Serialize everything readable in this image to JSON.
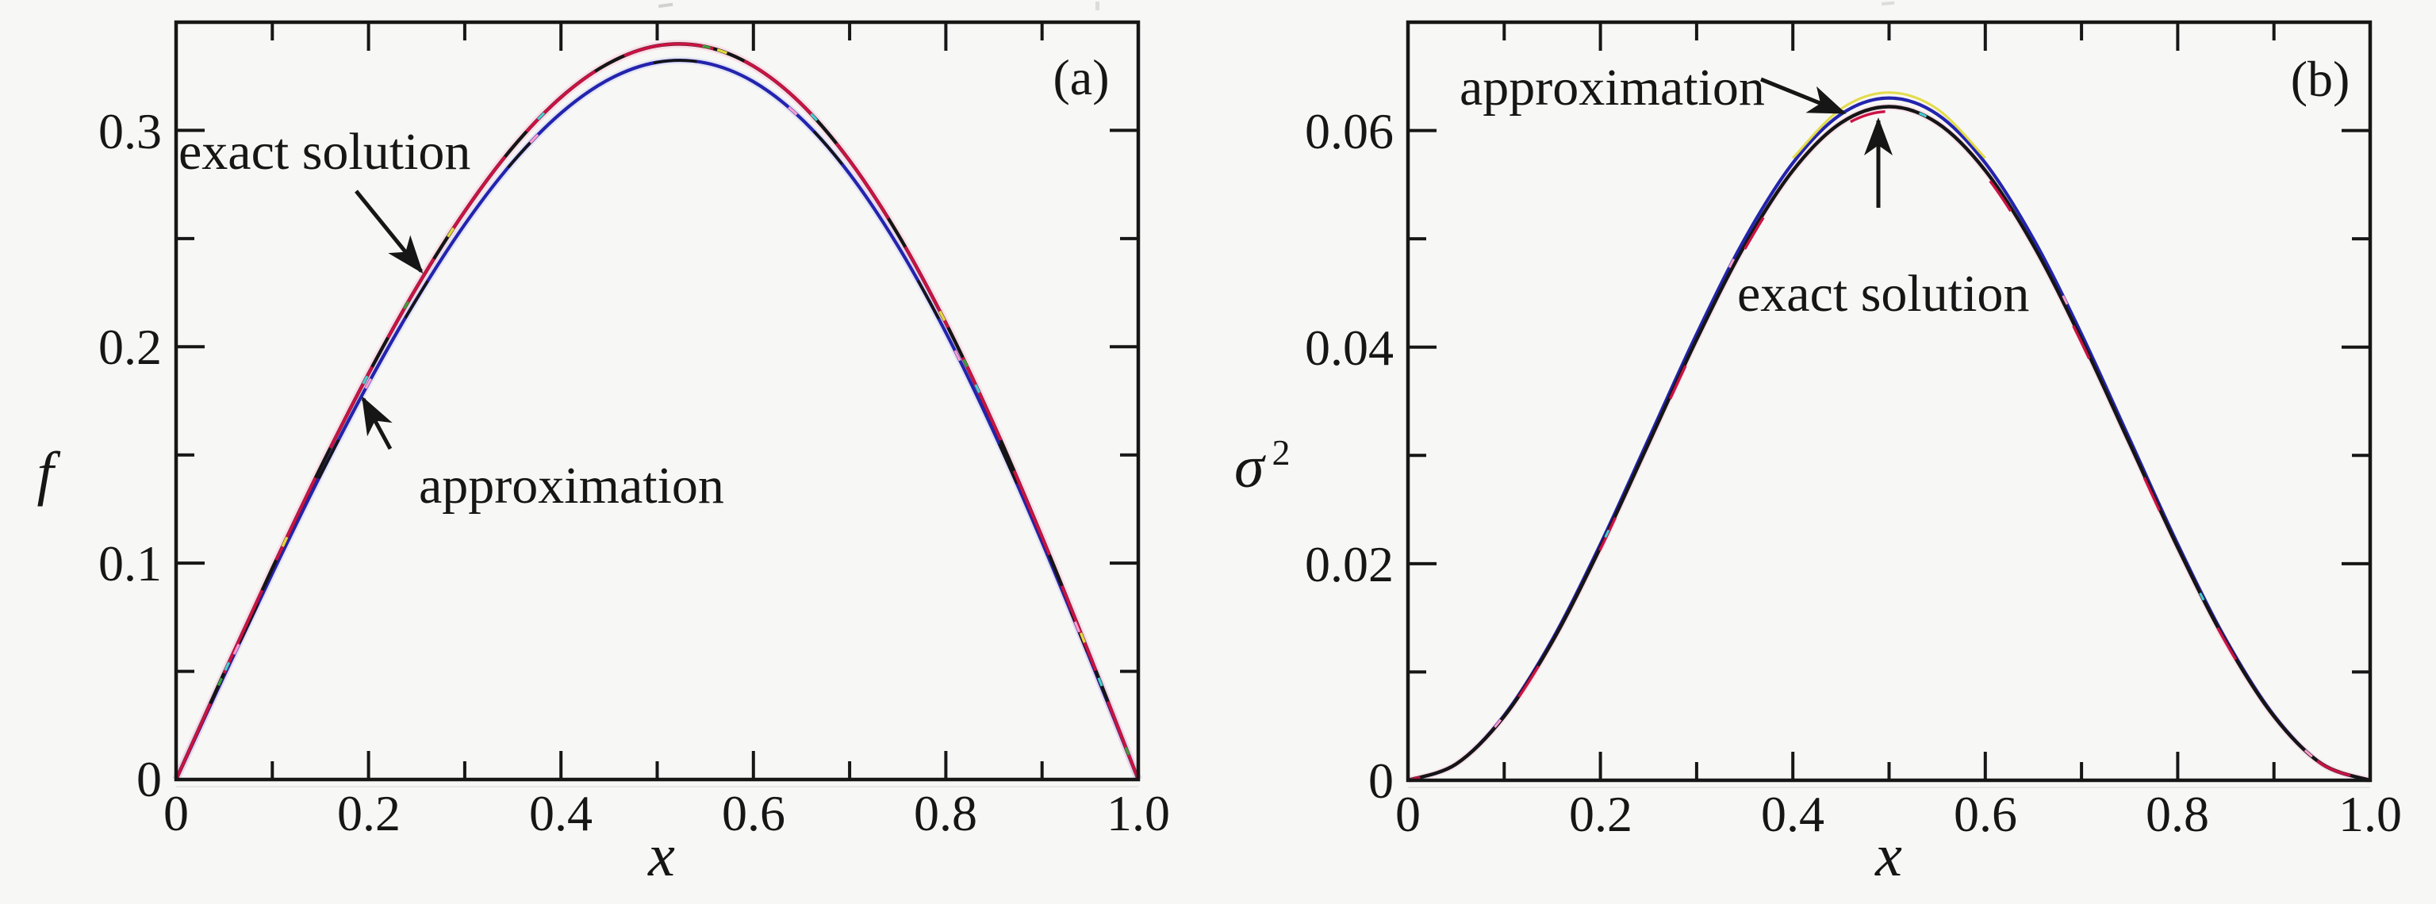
{
  "figure": {
    "background": "#f7f7f5",
    "colors": {
      "frame": "#161616",
      "exact_base": "#151515",
      "exact_overlay_red": "#cb1243",
      "exact_halo_pink": "#ffb0d2",
      "approx_blue": "#2324ad",
      "approx_halo": "#b9bcf2",
      "speck_yellow": "#e0d83c",
      "speck_cyan": "#47cfcf",
      "speck_green": "#3aa23a",
      "speck_pink": "#ff9cce"
    },
    "panel_a": {
      "label": "(a)",
      "x_axis": {
        "label": "x",
        "tick_labels": [
          "0",
          "0.2",
          "0.4",
          "0.6",
          "0.8",
          "1.0"
        ]
      },
      "y_axis": {
        "label": "f",
        "tick_labels": [
          "0",
          "0.1",
          "0.2",
          "0.3"
        ]
      },
      "annotation_exact": "exact solution",
      "annotation_approx": "approximation"
    },
    "panel_b": {
      "label": "(b)",
      "x_axis": {
        "label": "x",
        "tick_labels": [
          "0",
          "0.2",
          "0.4",
          "0.6",
          "0.8",
          "1.0"
        ]
      },
      "y_axis": {
        "label_base": "σ",
        "label_sup": "2",
        "tick_labels": [
          "0",
          "0.02",
          "0.04",
          "0.06"
        ]
      },
      "annotation_exact": "exact solution",
      "annotation_approx": "approximation"
    }
  },
  "chart_data": [
    {
      "type": "line",
      "title": "(a)",
      "xlabel": "x",
      "ylabel": "f",
      "xlim": [
        0,
        1
      ],
      "ylim": [
        0,
        0.35
      ],
      "grid": false,
      "legend_position": "inline-arrow-annotations",
      "x_ticks": [
        0,
        0.2,
        0.4,
        0.6,
        0.8,
        1.0
      ],
      "y_ticks": [
        0,
        0.1,
        0.2,
        0.3
      ],
      "x": [
        0,
        0.05,
        0.1,
        0.15,
        0.2,
        0.25,
        0.3,
        0.35,
        0.4,
        0.45,
        0.5,
        0.55,
        0.6,
        0.65,
        0.7,
        0.75,
        0.8,
        0.85,
        0.9,
        0.95,
        1
      ],
      "series": [
        {
          "name": "exact solution",
          "color": "#cb1243",
          "values": [
            0,
            0.0493,
            0.0976,
            0.144,
            0.1876,
            0.2275,
            0.2626,
            0.2922,
            0.3153,
            0.3311,
            0.3391,
            0.3387,
            0.3297,
            0.3121,
            0.286,
            0.2521,
            0.211,
            0.1639,
            0.112,
            0.0569,
            0
          ]
        },
        {
          "name": "approximation",
          "color": "#2324ad",
          "values": [
            0,
            0.0481,
            0.0952,
            0.1406,
            0.1832,
            0.2221,
            0.2565,
            0.2854,
            0.308,
            0.3236,
            0.3315,
            0.3312,
            0.3225,
            0.3053,
            0.2799,
            0.2467,
            0.2066,
            0.1605,
            0.1097,
            0.0557,
            0
          ]
        }
      ],
      "annotations": [
        {
          "text": "exact solution",
          "points_to": "exact solution curve"
        },
        {
          "text": "approximation",
          "points_to": "approximation curve"
        }
      ]
    },
    {
      "type": "line",
      "title": "(b)",
      "xlabel": "x",
      "ylabel": "σ2",
      "xlim": [
        0,
        1
      ],
      "ylim": [
        0,
        0.07
      ],
      "grid": false,
      "legend_position": "inline-arrow-annotations",
      "x_ticks": [
        0,
        0.2,
        0.4,
        0.6,
        0.8,
        1.0
      ],
      "y_ticks": [
        0,
        0.02,
        0.04,
        0.06
      ],
      "x": [
        0,
        0.05,
        0.1,
        0.15,
        0.2,
        0.25,
        0.3,
        0.35,
        0.4,
        0.45,
        0.5,
        0.55,
        0.6,
        0.65,
        0.7,
        0.75,
        0.8,
        0.85,
        0.9,
        0.95,
        1
      ],
      "series": [
        {
          "name": "exact solution",
          "color": "#151515",
          "values": [
            0,
            0.0015,
            0.0059,
            0.0128,
            0.0215,
            0.0311,
            0.0407,
            0.0494,
            0.0563,
            0.0607,
            0.0622,
            0.0607,
            0.0563,
            0.0494,
            0.0407,
            0.0311,
            0.0215,
            0.0128,
            0.0059,
            0.0015,
            0
          ]
        },
        {
          "name": "approximation",
          "color": "#2324ad",
          "values": [
            0,
            0.0015,
            0.006,
            0.013,
            0.0218,
            0.0315,
            0.0412,
            0.05,
            0.057,
            0.0615,
            0.063,
            0.0615,
            0.057,
            0.05,
            0.0412,
            0.0315,
            0.0218,
            0.013,
            0.006,
            0.0015,
            0
          ]
        }
      ],
      "annotations": [
        {
          "text": "approximation",
          "points_to": "approximation curve peak"
        },
        {
          "text": "exact solution",
          "points_to": "exact solution curve peak"
        }
      ]
    }
  ]
}
